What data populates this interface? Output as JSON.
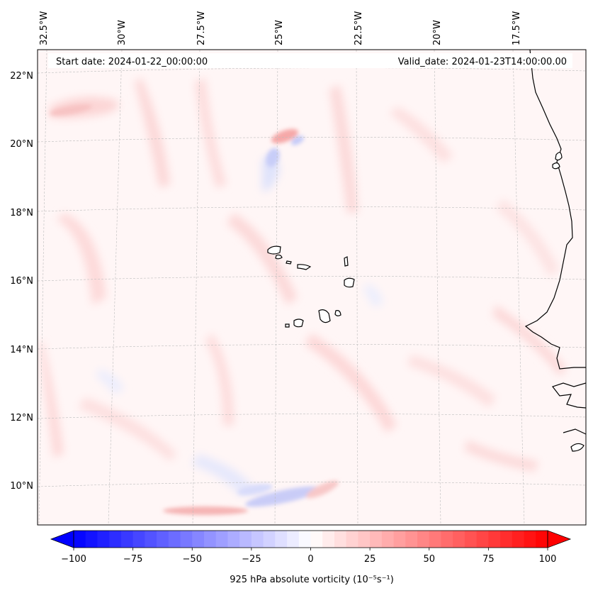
{
  "map": {
    "projection": "Lambert-conformal-like",
    "longitude_labels": [
      "32.5°W",
      "30°W",
      "27.5°W",
      "25°W",
      "22.5°W",
      "20°W",
      "17.5°W"
    ],
    "latitude_labels": [
      "22°N",
      "20°N",
      "18°N",
      "16°N",
      "14°N",
      "12°N",
      "10°N"
    ],
    "start_date_text": "Start date: 2024-01-22_00:00:00",
    "valid_date_text": "Valid_date: 2024-01-23T14:00:00.00",
    "field": "925 hPa absolute vorticity",
    "land_label_note": "coastlines of West Africa and Cape Verde islands"
  },
  "colorbar": {
    "label": "925 hPa absolute vorticity (10⁻⁵s⁻¹)",
    "min": -100,
    "max": 100,
    "ticks": [
      "−100",
      "−75",
      "−50",
      "−25",
      "0",
      "25",
      "50",
      "75",
      "100"
    ],
    "low_color": "#0000ff",
    "mid_color": "#ffffff",
    "high_color": "#ff0000"
  }
}
